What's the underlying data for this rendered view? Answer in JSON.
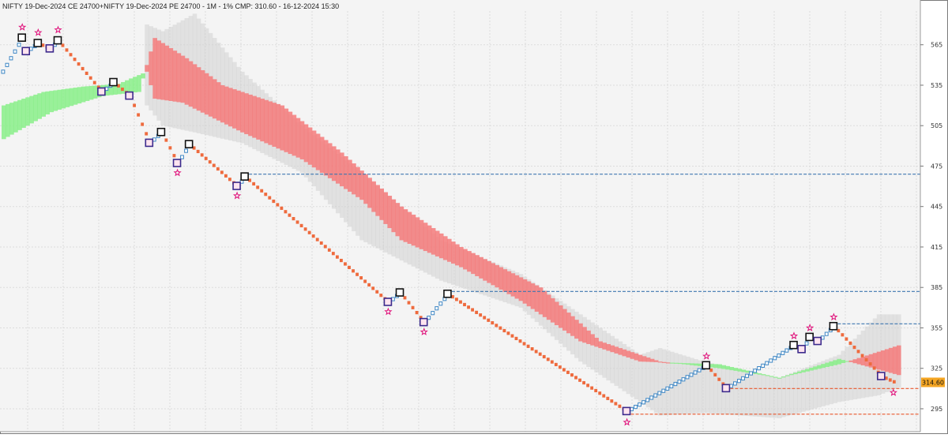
{
  "chart_data": {
    "type": "renko-ichimoku",
    "title": "NIFTY 19-Dec-2024 CE 24700+NIFTY 19-Dec-2024 PE 24700 - 1M - 1% CMP: 310.60 - 16-12-2024 15:30",
    "price_label": "314.60",
    "ylim": [
      278,
      590
    ],
    "y_ticks": [
      295,
      325,
      355,
      385,
      415,
      445,
      475,
      505,
      535,
      565
    ],
    "grid": true,
    "colors": {
      "up_brick": "#3d86c4",
      "down_brick": "#ee6a3d",
      "cloud_bull": "#88ee88",
      "cloud_bear": "#f47b7b",
      "shadow": "#d2d2d2",
      "level_blue": "#3d76b0",
      "level_red": "#e8572c",
      "marker_star": "#e0107a"
    },
    "price_path": [
      {
        "i": 0,
        "v": 545
      },
      {
        "i": 5,
        "v": 570
      },
      {
        "i": 6,
        "v": 560
      },
      {
        "i": 9,
        "v": 566
      },
      {
        "i": 12,
        "v": 562
      },
      {
        "i": 14,
        "v": 568
      },
      {
        "i": 25,
        "v": 530
      },
      {
        "i": 28,
        "v": 537
      },
      {
        "i": 32,
        "v": 527
      },
      {
        "i": 37,
        "v": 492
      },
      {
        "i": 40,
        "v": 500
      },
      {
        "i": 44,
        "v": 477
      },
      {
        "i": 47,
        "v": 491
      },
      {
        "i": 59,
        "v": 460
      },
      {
        "i": 61,
        "v": 467
      },
      {
        "i": 97,
        "v": 374
      },
      {
        "i": 100,
        "v": 381
      },
      {
        "i": 106,
        "v": 359
      },
      {
        "i": 112,
        "v": 380
      },
      {
        "i": 157,
        "v": 293
      },
      {
        "i": 177,
        "v": 327
      },
      {
        "i": 182,
        "v": 310
      },
      {
        "i": 199,
        "v": 342
      },
      {
        "i": 201,
        "v": 339
      },
      {
        "i": 203,
        "v": 348
      },
      {
        "i": 205,
        "v": 345
      },
      {
        "i": 209,
        "v": 356
      },
      {
        "i": 221,
        "v": 319
      },
      {
        "i": 224,
        "v": 315
      }
    ],
    "tenkan": [
      {
        "i": 0,
        "v": 520
      },
      {
        "i": 10,
        "v": 530
      },
      {
        "i": 20,
        "v": 534
      },
      {
        "i": 29,
        "v": 536
      },
      {
        "i": 32,
        "v": 540
      },
      {
        "i": 36,
        "v": 545
      },
      {
        "i": 38,
        "v": 525
      },
      {
        "i": 45,
        "v": 522
      },
      {
        "i": 60,
        "v": 500
      },
      {
        "i": 75,
        "v": 480
      },
      {
        "i": 90,
        "v": 450
      },
      {
        "i": 100,
        "v": 420
      },
      {
        "i": 115,
        "v": 400
      },
      {
        "i": 130,
        "v": 375
      },
      {
        "i": 145,
        "v": 345
      },
      {
        "i": 160,
        "v": 330
      },
      {
        "i": 180,
        "v": 328
      },
      {
        "i": 195,
        "v": 318
      },
      {
        "i": 210,
        "v": 332
      },
      {
        "i": 225,
        "v": 320
      }
    ],
    "kijun": [
      {
        "i": 0,
        "v": 495
      },
      {
        "i": 12,
        "v": 515
      },
      {
        "i": 25,
        "v": 527
      },
      {
        "i": 34,
        "v": 530
      },
      {
        "i": 38,
        "v": 570
      },
      {
        "i": 46,
        "v": 555
      },
      {
        "i": 55,
        "v": 535
      },
      {
        "i": 70,
        "v": 520
      },
      {
        "i": 85,
        "v": 485
      },
      {
        "i": 100,
        "v": 445
      },
      {
        "i": 115,
        "v": 415
      },
      {
        "i": 135,
        "v": 385
      },
      {
        "i": 150,
        "v": 345
      },
      {
        "i": 165,
        "v": 330
      },
      {
        "i": 180,
        "v": 325
      },
      {
        "i": 195,
        "v": 318
      },
      {
        "i": 210,
        "v": 328
      },
      {
        "i": 225,
        "v": 342
      }
    ],
    "shadow_band": [
      {
        "i": 36,
        "v": [
          520,
          580
        ]
      },
      {
        "i": 40,
        "v": [
          505,
          575
        ]
      },
      {
        "i": 48,
        "v": [
          500,
          588
        ]
      },
      {
        "i": 60,
        "v": [
          492,
          545
        ]
      },
      {
        "i": 75,
        "v": [
          470,
          505
        ]
      },
      {
        "i": 90,
        "v": [
          420,
          470
        ]
      },
      {
        "i": 110,
        "v": [
          390,
          420
        ]
      },
      {
        "i": 130,
        "v": [
          370,
          395
        ]
      },
      {
        "i": 145,
        "v": [
          330,
          365
        ]
      },
      {
        "i": 160,
        "v": [
          300,
          335
        ]
      },
      {
        "i": 165,
        "v": [
          290,
          340
        ]
      },
      {
        "i": 176,
        "v": [
          292,
          330
        ]
      },
      {
        "i": 195,
        "v": [
          288,
          318
        ]
      },
      {
        "i": 210,
        "v": [
          300,
          335
        ]
      },
      {
        "i": 220,
        "v": [
          305,
          365
        ]
      },
      {
        "i": 226,
        "v": [
          312,
          365
        ]
      }
    ],
    "levels": [
      {
        "v": 469,
        "from": 61,
        "color": "blue"
      },
      {
        "v": 382,
        "from": 112,
        "color": "blue"
      },
      {
        "v": 358,
        "from": 209,
        "color": "blue"
      },
      {
        "v": 310,
        "from": 182,
        "color": "red"
      },
      {
        "v": 291,
        "from": 157,
        "color": "red"
      }
    ],
    "stars": [
      {
        "i": 5,
        "v": 578
      },
      {
        "i": 9,
        "v": 574
      },
      {
        "i": 14,
        "v": 576
      },
      {
        "i": 44,
        "v": 470
      },
      {
        "i": 59,
        "v": 453
      },
      {
        "i": 97,
        "v": 367
      },
      {
        "i": 106,
        "v": 352
      },
      {
        "i": 157,
        "v": 285
      },
      {
        "i": 177,
        "v": 334
      },
      {
        "i": 199,
        "v": 349
      },
      {
        "i": 203,
        "v": 355
      },
      {
        "i": 209,
        "v": 363
      },
      {
        "i": 224,
        "v": 307
      }
    ]
  }
}
